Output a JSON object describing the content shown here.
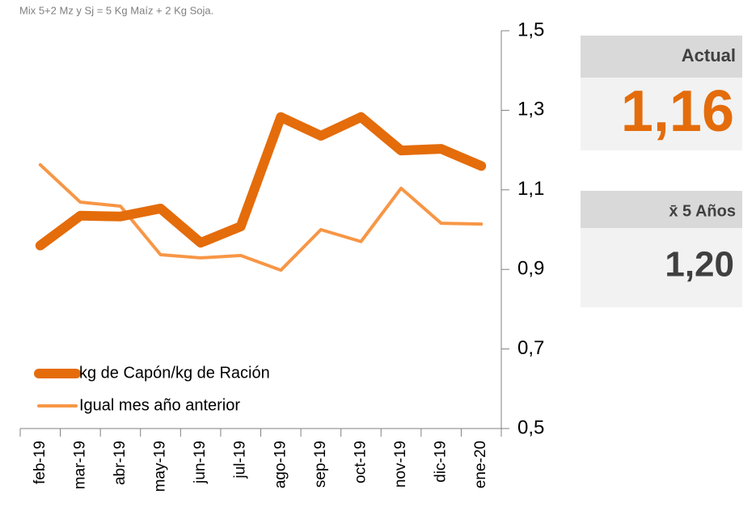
{
  "chart_data": {
    "type": "line",
    "subtitle": "Mix 5+2 Mz y Sj = 5 Kg Maíz + 2 Kg Soja.",
    "categories": [
      "feb-19",
      "mar-19",
      "abr-19",
      "may-19",
      "jun-19",
      "jul-19",
      "ago-19",
      "sep-19",
      "oct-19",
      "nov-19",
      "dic-19",
      "ene-20"
    ],
    "series": [
      {
        "name": "kg de Capón/kg de Ración",
        "color": "#e46c0a",
        "width": 12,
        "values": [
          0.96,
          1.035,
          1.033,
          1.053,
          0.967,
          1.008,
          1.283,
          1.236,
          1.283,
          1.199,
          1.203,
          1.16
        ]
      },
      {
        "name": "Igual mes año anterior",
        "color": "#f79646",
        "width": 4,
        "values": [
          1.163,
          1.069,
          1.059,
          0.937,
          0.929,
          0.935,
          0.898,
          1.0,
          0.97,
          1.104,
          1.016,
          1.014
        ]
      }
    ],
    "ylim": [
      0.5,
      1.5
    ],
    "yticks": [
      {
        "value": 0.5,
        "label": "0,5"
      },
      {
        "value": 0.7,
        "label": "0,7"
      },
      {
        "value": 0.9,
        "label": "0,9"
      },
      {
        "value": 1.1,
        "label": "1,1"
      },
      {
        "value": 1.3,
        "label": "1,3"
      },
      {
        "value": 1.5,
        "label": "1,5"
      }
    ],
    "y_axis_side": "right",
    "legend": "lower left"
  },
  "panels": {
    "actual": {
      "label": "Actual",
      "value": "1,16"
    },
    "average": {
      "label": "x̄ 5 Años",
      "value": "1,20"
    }
  }
}
